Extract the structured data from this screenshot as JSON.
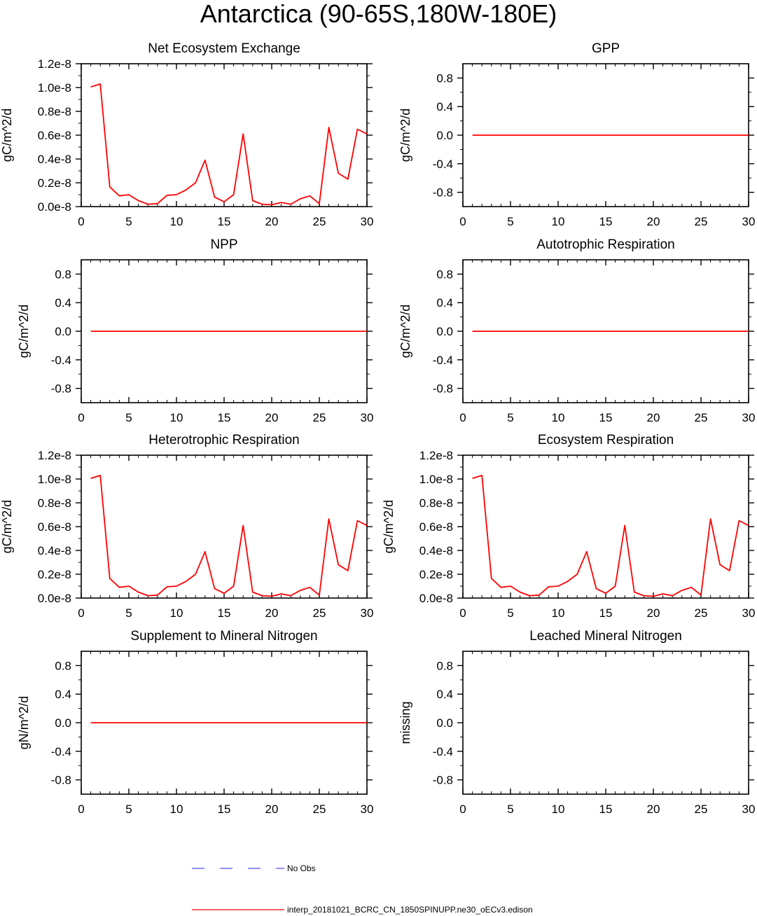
{
  "title": "Antarctica (90-65S,180W-180E)",
  "colors": {
    "model": "#ff0000",
    "obs": "#4d4dff",
    "axis": "#000000"
  },
  "legend": {
    "obs_label": "No Obs",
    "model_label": "interp_20181021_BCRC_CN_1850SPINUPP.ne30_oECv3.edison"
  },
  "chart_data": [
    {
      "type": "line",
      "title": "Net Ecosystem Exchange",
      "ylabel": "gC/m^2/d",
      "xlim": [
        0,
        30
      ],
      "ylim": [
        0,
        1.2e-08
      ],
      "xticks": [
        0,
        5,
        10,
        15,
        20,
        25,
        30
      ],
      "yticks": [
        0,
        2e-09,
        4e-09,
        6e-09,
        8e-09,
        1e-08,
        1.2e-08
      ],
      "ytick_labels": [
        "0.0e-8",
        "0.2e-8",
        "0.4e-8",
        "0.6e-8",
        "0.8e-8",
        "1.0e-8",
        "1.2e-8"
      ],
      "series": [
        {
          "name": "interp_20181021_BCRC_CN_1850SPINUPP.ne30_oECv3.edison",
          "x": [
            1,
            2,
            3,
            4,
            5,
            6,
            7,
            8,
            9,
            10,
            11,
            12,
            13,
            14,
            15,
            16,
            17,
            18,
            19,
            20,
            21,
            22,
            23,
            24,
            25,
            26,
            27,
            28,
            29,
            30
          ],
          "values": [
            1.005e-08,
            1.03e-08,
            1.65e-09,
            9e-10,
            1e-09,
            5e-10,
            2e-10,
            2.5e-10,
            9.5e-10,
            1e-09,
            1.4e-09,
            2e-09,
            3.9e-09,
            8e-10,
            4e-10,
            1e-09,
            6.1e-09,
            5e-10,
            2e-10,
            1.5e-10,
            3.5e-10,
            2e-10,
            6.5e-10,
            9e-10,
            2.5e-10,
            6.65e-09,
            2.8e-09,
            2.3e-09,
            6.5e-09,
            6.1e-09
          ]
        }
      ]
    },
    {
      "type": "line",
      "title": "GPP",
      "ylabel": "gC/m^2/d",
      "xlim": [
        0,
        30
      ],
      "ylim": [
        -1,
        1
      ],
      "xticks": [
        0,
        5,
        10,
        15,
        20,
        25,
        30
      ],
      "yticks": [
        -0.8,
        -0.4,
        0,
        0.4,
        0.8
      ],
      "ytick_labels": [
        "-0.8",
        "-0.4",
        "0.0",
        "0.4",
        "0.8"
      ],
      "series": [
        {
          "name": "interp_20181021_BCRC_CN_1850SPINUPP.ne30_oECv3.edison",
          "x": [
            1,
            2,
            3,
            4,
            5,
            6,
            7,
            8,
            9,
            10,
            11,
            12,
            13,
            14,
            15,
            16,
            17,
            18,
            19,
            20,
            21,
            22,
            23,
            24,
            25,
            26,
            27,
            28,
            29,
            30
          ],
          "values": [
            0,
            0,
            0,
            0,
            0,
            0,
            0,
            0,
            0,
            0,
            0,
            0,
            0,
            0,
            0,
            0,
            0,
            0,
            0,
            0,
            0,
            0,
            0,
            0,
            0,
            0,
            0,
            0,
            0,
            0
          ]
        }
      ]
    },
    {
      "type": "line",
      "title": "NPP",
      "ylabel": "gC/m^2/d",
      "xlim": [
        0,
        30
      ],
      "ylim": [
        -1,
        1
      ],
      "xticks": [
        0,
        5,
        10,
        15,
        20,
        25,
        30
      ],
      "yticks": [
        -0.8,
        -0.4,
        0,
        0.4,
        0.8
      ],
      "ytick_labels": [
        "-0.8",
        "-0.4",
        "0.0",
        "0.4",
        "0.8"
      ],
      "series": [
        {
          "name": "interp_20181021_BCRC_CN_1850SPINUPP.ne30_oECv3.edison",
          "x": [
            1,
            2,
            3,
            4,
            5,
            6,
            7,
            8,
            9,
            10,
            11,
            12,
            13,
            14,
            15,
            16,
            17,
            18,
            19,
            20,
            21,
            22,
            23,
            24,
            25,
            26,
            27,
            28,
            29,
            30
          ],
          "values": [
            0,
            0,
            0,
            0,
            0,
            0,
            0,
            0,
            0,
            0,
            0,
            0,
            0,
            0,
            0,
            0,
            0,
            0,
            0,
            0,
            0,
            0,
            0,
            0,
            0,
            0,
            0,
            0,
            0,
            0
          ]
        }
      ]
    },
    {
      "type": "line",
      "title": "Autotrophic Respiration",
      "ylabel": "gC/m^2/d",
      "xlim": [
        0,
        30
      ],
      "ylim": [
        -1,
        1
      ],
      "xticks": [
        0,
        5,
        10,
        15,
        20,
        25,
        30
      ],
      "yticks": [
        -0.8,
        -0.4,
        0,
        0.4,
        0.8
      ],
      "ytick_labels": [
        "-0.8",
        "-0.4",
        "0.0",
        "0.4",
        "0.8"
      ],
      "series": [
        {
          "name": "interp_20181021_BCRC_CN_1850SPINUPP.ne30_oECv3.edison",
          "x": [
            1,
            2,
            3,
            4,
            5,
            6,
            7,
            8,
            9,
            10,
            11,
            12,
            13,
            14,
            15,
            16,
            17,
            18,
            19,
            20,
            21,
            22,
            23,
            24,
            25,
            26,
            27,
            28,
            29,
            30
          ],
          "values": [
            0,
            0,
            0,
            0,
            0,
            0,
            0,
            0,
            0,
            0,
            0,
            0,
            0,
            0,
            0,
            0,
            0,
            0,
            0,
            0,
            0,
            0,
            0,
            0,
            0,
            0,
            0,
            0,
            0,
            0
          ]
        }
      ]
    },
    {
      "type": "line",
      "title": "Heterotrophic Respiration",
      "ylabel": "gC/m^2/d",
      "xlim": [
        0,
        30
      ],
      "ylim": [
        0,
        1.2e-08
      ],
      "xticks": [
        0,
        5,
        10,
        15,
        20,
        25,
        30
      ],
      "yticks": [
        0,
        2e-09,
        4e-09,
        6e-09,
        8e-09,
        1e-08,
        1.2e-08
      ],
      "ytick_labels": [
        "0.0e-8",
        "0.2e-8",
        "0.4e-8",
        "0.6e-8",
        "0.8e-8",
        "1.0e-8",
        "1.2e-8"
      ],
      "series": [
        {
          "name": "interp_20181021_BCRC_CN_1850SPINUPP.ne30_oECv3.edison",
          "x": [
            1,
            2,
            3,
            4,
            5,
            6,
            7,
            8,
            9,
            10,
            11,
            12,
            13,
            14,
            15,
            16,
            17,
            18,
            19,
            20,
            21,
            22,
            23,
            24,
            25,
            26,
            27,
            28,
            29,
            30
          ],
          "values": [
            1.005e-08,
            1.03e-08,
            1.65e-09,
            9e-10,
            1e-09,
            5e-10,
            2e-10,
            2.5e-10,
            9.5e-10,
            1e-09,
            1.4e-09,
            2e-09,
            3.9e-09,
            8e-10,
            4e-10,
            1e-09,
            6.1e-09,
            5e-10,
            2e-10,
            1.5e-10,
            3.5e-10,
            2e-10,
            6.5e-10,
            9e-10,
            2.5e-10,
            6.65e-09,
            2.8e-09,
            2.3e-09,
            6.5e-09,
            6.1e-09
          ]
        }
      ]
    },
    {
      "type": "line",
      "title": "Ecosystem Respiration",
      "ylabel": "gC/m^2/d",
      "xlim": [
        0,
        30
      ],
      "ylim": [
        0,
        1.2e-08
      ],
      "xticks": [
        0,
        5,
        10,
        15,
        20,
        25,
        30
      ],
      "yticks": [
        0,
        2e-09,
        4e-09,
        6e-09,
        8e-09,
        1e-08,
        1.2e-08
      ],
      "ytick_labels": [
        "0.0e-8",
        "0.2e-8",
        "0.4e-8",
        "0.6e-8",
        "0.8e-8",
        "1.0e-8",
        "1.2e-8"
      ],
      "series": [
        {
          "name": "interp_20181021_BCRC_CN_1850SPINUPP.ne30_oECv3.edison",
          "x": [
            1,
            2,
            3,
            4,
            5,
            6,
            7,
            8,
            9,
            10,
            11,
            12,
            13,
            14,
            15,
            16,
            17,
            18,
            19,
            20,
            21,
            22,
            23,
            24,
            25,
            26,
            27,
            28,
            29,
            30
          ],
          "values": [
            1.005e-08,
            1.03e-08,
            1.65e-09,
            9e-10,
            1e-09,
            5e-10,
            2e-10,
            2.5e-10,
            9.5e-10,
            1e-09,
            1.4e-09,
            2e-09,
            3.9e-09,
            8e-10,
            4e-10,
            1e-09,
            6.1e-09,
            5e-10,
            2e-10,
            1.5e-10,
            3.5e-10,
            2e-10,
            6.5e-10,
            9e-10,
            2.5e-10,
            6.65e-09,
            2.8e-09,
            2.3e-09,
            6.5e-09,
            6.1e-09
          ]
        }
      ]
    },
    {
      "type": "line",
      "title": "Supplement to Mineral Nitrogen",
      "ylabel": "gN/m^2/d",
      "xlim": [
        0,
        30
      ],
      "ylim": [
        -1,
        1
      ],
      "xticks": [
        0,
        5,
        10,
        15,
        20,
        25,
        30
      ],
      "yticks": [
        -0.8,
        -0.4,
        0,
        0.4,
        0.8
      ],
      "ytick_labels": [
        "-0.8",
        "-0.4",
        "0.0",
        "0.4",
        "0.8"
      ],
      "series": [
        {
          "name": "interp_20181021_BCRC_CN_1850SPINUPP.ne30_oECv3.edison",
          "x": [
            1,
            2,
            3,
            4,
            5,
            6,
            7,
            8,
            9,
            10,
            11,
            12,
            13,
            14,
            15,
            16,
            17,
            18,
            19,
            20,
            21,
            22,
            23,
            24,
            25,
            26,
            27,
            28,
            29,
            30
          ],
          "values": [
            0,
            0,
            0,
            0,
            0,
            0,
            0,
            0,
            0,
            0,
            0,
            0,
            0,
            0,
            0,
            0,
            0,
            0,
            0,
            0,
            0,
            0,
            0,
            0,
            0,
            0,
            0,
            0,
            0,
            0
          ]
        }
      ]
    },
    {
      "type": "line",
      "title": "Leached Mineral Nitrogen",
      "ylabel": "missing",
      "xlim": [
        0,
        30
      ],
      "ylim": [
        -1,
        1
      ],
      "xticks": [
        0,
        5,
        10,
        15,
        20,
        25,
        30
      ],
      "yticks": [
        -0.8,
        -0.4,
        0,
        0.4,
        0.8
      ],
      "ytick_labels": [
        "-0.8",
        "-0.4",
        "0.0",
        "0.4",
        "0.8"
      ],
      "series": []
    }
  ]
}
